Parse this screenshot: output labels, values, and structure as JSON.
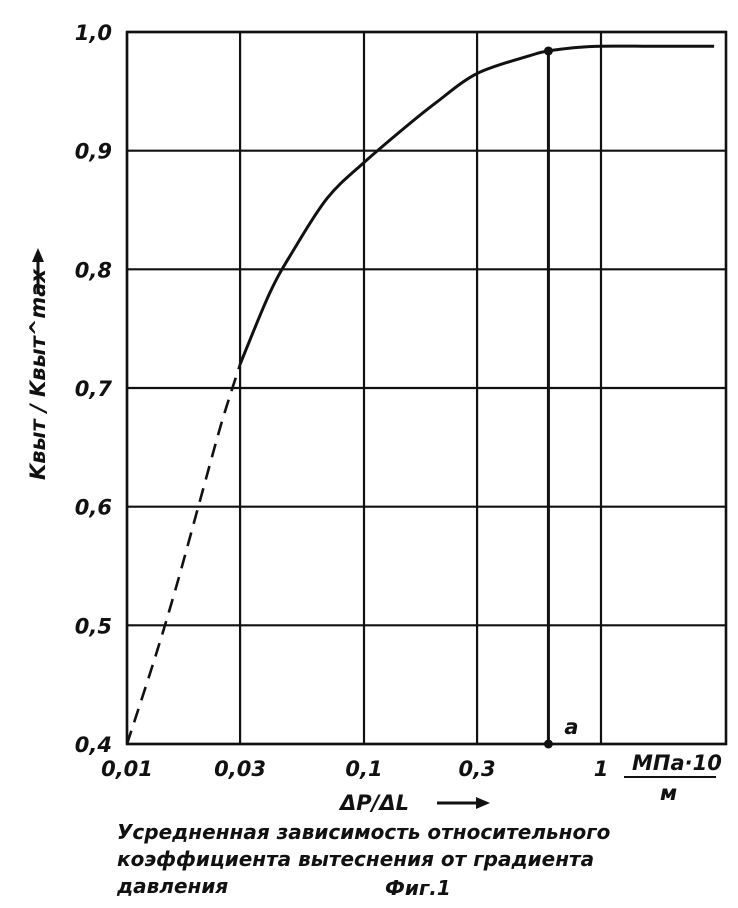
{
  "chart_data": {
    "type": "line",
    "x_scale": "log",
    "x_ticks": [
      0.01,
      0.03,
      0.1,
      0.3,
      1
    ],
    "x_tick_labels": [
      "0,01",
      "0,03",
      "0,1",
      "0,3",
      "1"
    ],
    "xlim": [
      0.01,
      3
    ],
    "ylim": [
      0.4,
      1.0
    ],
    "y_ticks": [
      0.4,
      0.5,
      0.6,
      0.7,
      0.8,
      0.9,
      1.0
    ],
    "y_tick_labels": [
      "0,4",
      "0,5",
      "0,6",
      "0,7",
      "0,8",
      "0,9",
      "1,0"
    ],
    "xlabel": "ΔP/ΔL",
    "x_unit_top": "МПа·10",
    "x_unit_bottom": "м",
    "ylabel": "Kвыт / Kвыт^max",
    "grid": true,
    "series": [
      {
        "style": "dashed",
        "x": [
          0.01,
          0.013,
          0.016,
          0.02,
          0.025,
          0.03
        ],
        "y": [
          0.4,
          0.47,
          0.53,
          0.6,
          0.67,
          0.72
        ]
      },
      {
        "style": "solid",
        "x": [
          0.03,
          0.04,
          0.05,
          0.07,
          0.1,
          0.15,
          0.2,
          0.3,
          0.5,
          0.6,
          0.8,
          1.0,
          1.5,
          2.0,
          3.0
        ],
        "y": [
          0.72,
          0.78,
          0.815,
          0.86,
          0.89,
          0.92,
          0.94,
          0.965,
          0.98,
          0.984,
          0.987,
          0.988,
          0.988,
          0.988,
          0.988
        ]
      }
    ],
    "marker": {
      "label": "a",
      "x": 0.6,
      "y_top": 0.984,
      "y_bottom": 0.4
    }
  },
  "caption": {
    "line1": "Усредненная зависимость относительного",
    "line2": "коэффициента вытеснения от градиента",
    "line3": "давления",
    "figure": "Фиг.1"
  }
}
